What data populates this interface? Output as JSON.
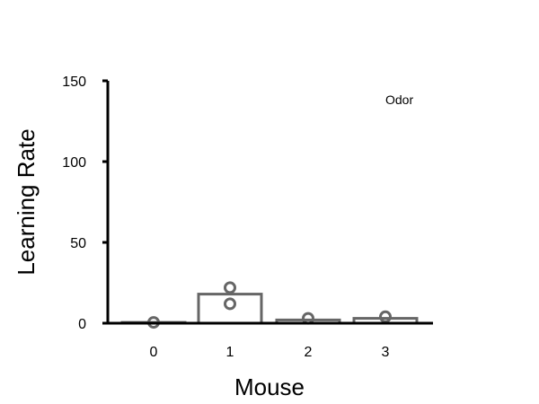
{
  "chart_data": {
    "type": "bar",
    "categories": [
      "0",
      "1",
      "2",
      "3"
    ],
    "values": [
      0.5,
      18,
      2,
      3
    ],
    "points": [
      {
        "x": "0",
        "y": 0.5
      },
      {
        "x": "1",
        "y": 12
      },
      {
        "x": "1",
        "y": 22
      },
      {
        "x": "2",
        "y": 3
      },
      {
        "x": "3",
        "y": 4
      }
    ],
    "series_label": "Odor",
    "xlabel": "Mouse",
    "ylabel": "Learning Rate",
    "ylim": [
      0,
      150
    ],
    "yticks": [
      0,
      50,
      100,
      150
    ],
    "grid": false,
    "legend_position": "top-right",
    "colors": {
      "bar": "#666666",
      "axis": "#000000"
    }
  }
}
